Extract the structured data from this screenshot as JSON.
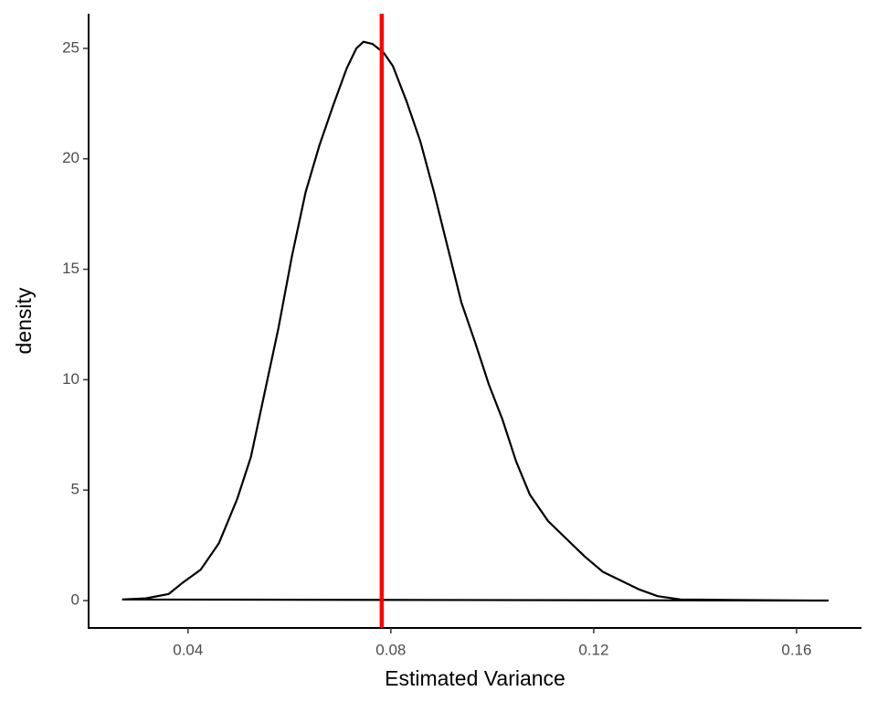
{
  "chart_data": {
    "type": "density",
    "xlabel": "Estimated Variance",
    "ylabel": "density",
    "x": [
      0.027,
      0.0317,
      0.0362,
      0.0389,
      0.0425,
      0.0461,
      0.0497,
      0.0524,
      0.0551,
      0.0578,
      0.0605,
      0.0632,
      0.0659,
      0.0686,
      0.0713,
      0.0732,
      0.0746,
      0.0764,
      0.0786,
      0.0804,
      0.0831,
      0.0858,
      0.0885,
      0.0912,
      0.0939,
      0.0966,
      0.0993,
      0.102,
      0.1047,
      0.1074,
      0.111,
      0.1146,
      0.1182,
      0.1218,
      0.1254,
      0.129,
      0.1326,
      0.1371,
      0.147,
      0.1663
    ],
    "series": [
      {
        "color": "#000000",
        "values": [
          0.05,
          0.1,
          0.3,
          0.8,
          1.4,
          2.6,
          4.6,
          6.5,
          9.4,
          12.3,
          15.6,
          18.5,
          20.6,
          22.4,
          24.1,
          25.0,
          25.3,
          25.2,
          24.8,
          24.2,
          22.6,
          20.8,
          18.5,
          16.0,
          13.5,
          11.7,
          9.8,
          8.2,
          6.3,
          4.8,
          3.6,
          2.8,
          2.0,
          1.3,
          0.9,
          0.5,
          0.2,
          0.05,
          0.03,
          0.0
        ]
      }
    ],
    "vline": {
      "x": 0.0782,
      "color": "#ff0000"
    },
    "xlim": [
      0.0204,
      0.1728
    ],
    "ylim": [
      -1.24,
      26.57
    ],
    "xticks": [
      0.04,
      0.08,
      0.12,
      0.16
    ],
    "yticks": [
      0,
      5,
      10,
      15,
      20,
      25
    ]
  }
}
